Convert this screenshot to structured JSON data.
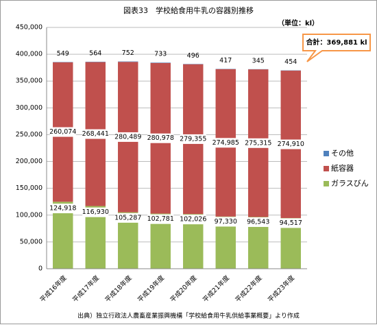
{
  "chart_data": {
    "type": "stacked-bar",
    "title": "図表33　学校給食用牛乳の容器別推移",
    "unit_label": "（単位：kl）",
    "annotation": "合計：369,881 kl",
    "source": "出典）独立行政法人農畜産業振興機構「学校給食用牛乳供給事業概要」より作成",
    "categories": [
      "平成16年度",
      "平成17年度",
      "平成18年度",
      "平成19年度",
      "平成20年度",
      "平成21年度",
      "平成22年度",
      "平成23年度"
    ],
    "series": [
      {
        "name": "ガラスびん",
        "color": "#9bbb59",
        "values": [
          124918,
          116930,
          105287,
          102781,
          102026,
          97330,
          96543,
          94517
        ],
        "value_labels": [
          "124,918",
          "116,930",
          "105,287",
          "102,781",
          "102,026",
          "97,330",
          "96,543",
          "94,517"
        ]
      },
      {
        "name": "紙容器",
        "color": "#c0504d",
        "values": [
          260074,
          268441,
          280489,
          280978,
          279355,
          274985,
          275315,
          274910
        ],
        "value_labels": [
          "260,074",
          "268,441",
          "280,489",
          "280,978",
          "279,355",
          "274,985",
          "275,315",
          "274,910"
        ]
      },
      {
        "name": "その他",
        "color": "#4f81bd",
        "values": [
          549,
          564,
          752,
          733,
          496,
          417,
          345,
          454
        ]
      }
    ],
    "ylim": [
      0,
      450000
    ],
    "yticks": [
      0,
      {
        "value": 50000,
        "label": "50,000"
      },
      {
        "value": 100000,
        "label": "100,000"
      },
      {
        "value": 150000,
        "label": "150,000"
      },
      {
        "value": 200000,
        "label": "200,000"
      },
      {
        "value": 250000,
        "label": "250,000"
      },
      {
        "value": 300000,
        "label": "300,000"
      },
      {
        "value": 350000,
        "label": "350,000"
      },
      {
        "value": 400000,
        "label": "400,000"
      },
      {
        "value": 450000,
        "label": "450,000"
      }
    ],
    "grid": true
  }
}
